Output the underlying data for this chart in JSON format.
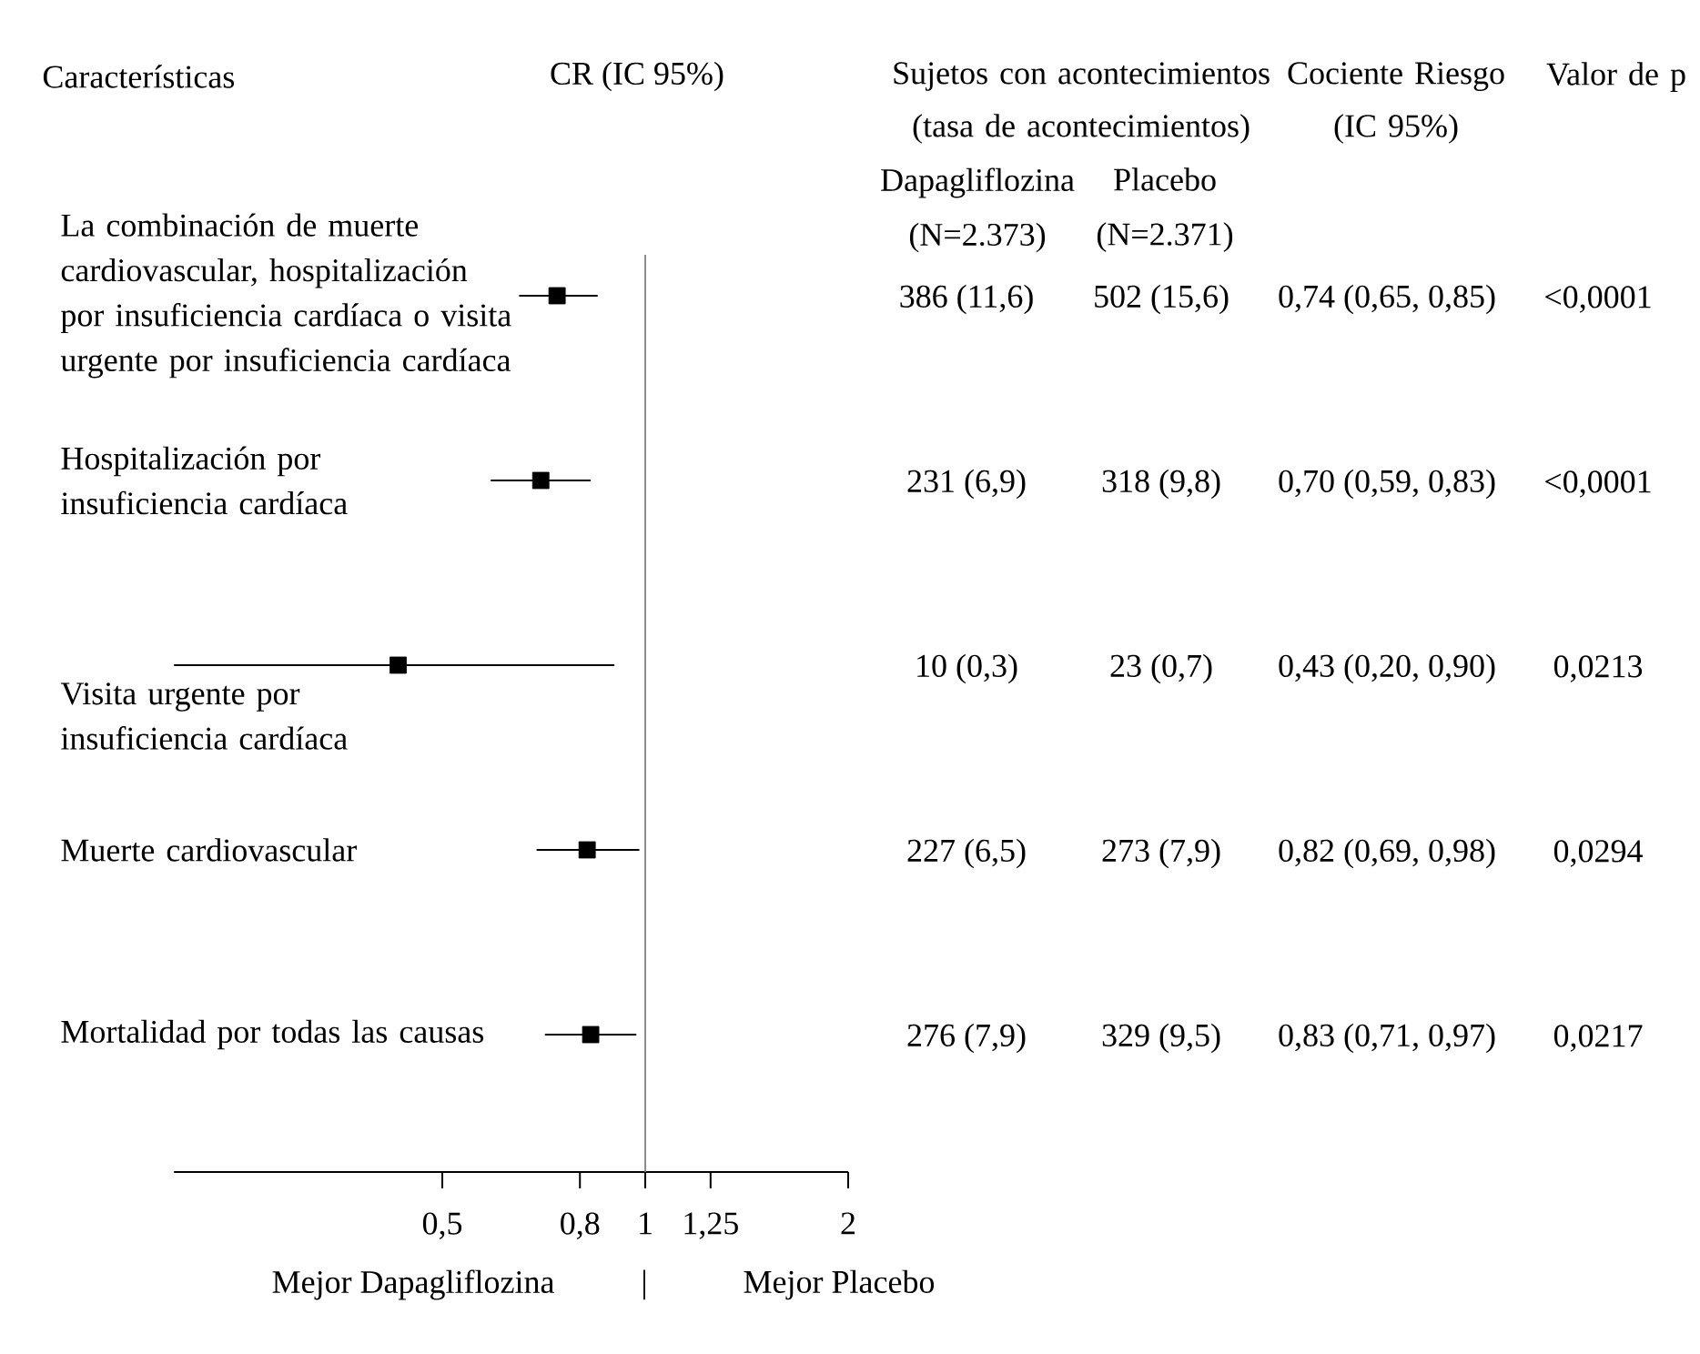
{
  "chart_data": [
    {
      "type": "scatter",
      "title": "CR (IC 95%)",
      "ylabel": "Características",
      "categories": [
        "La combinación de muerte cardiovascular, hospitalización por insuficiencia cardíaca o visita urgente por insuficiencia cardíaca",
        "Hospitalización por insuficiencia cardíaca",
        "Visita urgente por insuficiencia cardíaca",
        "Muerte cardiovascular",
        "Mortalidad por todas las causas"
      ],
      "values": [
        0.74,
        0.7,
        0.43,
        0.82,
        0.83
      ],
      "errors": [
        [
          0.65,
          0.85
        ],
        [
          0.59,
          0.83
        ],
        [
          0.2,
          0.9
        ],
        [
          0.69,
          0.98
        ],
        [
          0.71,
          0.97
        ]
      ],
      "orientation": "horizontal",
      "log": "x",
      "xlim": [
        0.2,
        2
      ],
      "xticks": [
        {
          "value": 0.5,
          "label": "0,5"
        },
        {
          "value": 0.8,
          "label": "0,8"
        },
        1,
        {
          "value": 1.25,
          "label": "1,25"
        },
        2
      ],
      "ref_lines": [
        {
          "axis": "x",
          "value": 1,
          "color": "#808080"
        }
      ],
      "marker": "square",
      "color": "#000000",
      "annotations": [
        "Mejor Dapagliflozina",
        "|",
        "Mejor Placebo"
      ]
    },
    {
      "type": "other",
      "annotations": [
        "Sujetos con acontecimientos (tasa de acontecimientos)",
        "Cociente Riesgo (IC 95%)",
        "Valor de p",
        "Dapagliflozina (N=2.373)",
        "Placebo (N=2.371)",
        "386 (11,6)",
        "502 (15,6)",
        "0,74 (0,65, 0,85)",
        "<0,0001",
        "231 (6,9)",
        "318 (9,8)",
        "0,70 (0,59, 0,83)",
        "<0,0001",
        "10 (0,3)",
        "23 (0,7)",
        "0,43 (0,20, 0,90)",
        "0,0213",
        "227 (6,5)",
        "273 (7,9)",
        "0,82 (0,69, 0,98)",
        "0,0294",
        "276 (7,9)",
        "329 (9,5)",
        "0,83 (0,71, 0,97)",
        "0,0217"
      ]
    }
  ]
}
